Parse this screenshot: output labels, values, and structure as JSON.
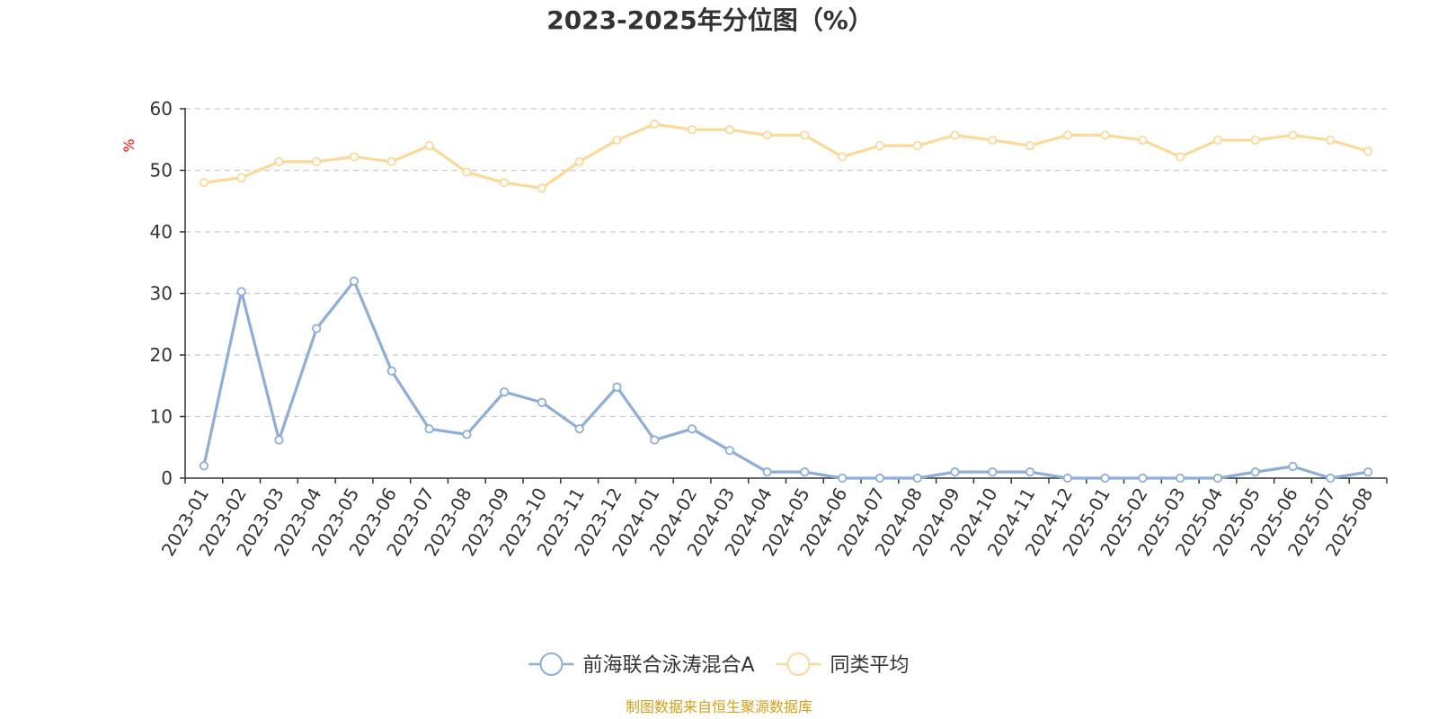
{
  "chart_data": {
    "type": "line",
    "title": "2023-2025年分位图（%）",
    "ylabel": "%",
    "xlabel": "",
    "ylim": [
      0,
      60
    ],
    "yticks": [
      0,
      10,
      20,
      30,
      40,
      50,
      60
    ],
    "grid": true,
    "legend_position": "bottom-center",
    "categories": [
      "2023-01",
      "2023-02",
      "2023-03",
      "2023-04",
      "2023-05",
      "2023-06",
      "2023-07",
      "2023-08",
      "2023-09",
      "2023-10",
      "2023-11",
      "2023-12",
      "2024-01",
      "2024-02",
      "2024-03",
      "2024-04",
      "2024-05",
      "2024-06",
      "2024-07",
      "2024-08",
      "2024-09",
      "2024-10",
      "2024-11",
      "2024-12",
      "2025-01",
      "2025-02",
      "2025-03",
      "2025-04",
      "2025-05",
      "2025-06",
      "2025-07",
      "2025-08"
    ],
    "series": [
      {
        "name": "前海联合泳涛混合A",
        "color": "#8eaed8",
        "values": [
          2,
          30.3,
          6.2,
          24.3,
          32,
          17.4,
          8,
          7.1,
          14,
          12.3,
          8,
          14.8,
          6.2,
          8,
          4.5,
          1,
          1,
          0,
          0,
          0,
          1,
          1,
          1,
          0,
          0,
          0,
          0,
          0,
          1,
          1.9,
          0,
          1
        ]
      },
      {
        "name": "同类平均",
        "color": "#fbd999",
        "values": [
          48,
          48.8,
          51.4,
          51.4,
          52.2,
          51.4,
          54,
          49.7,
          48,
          47.1,
          51.4,
          54.9,
          57.5,
          56.6,
          56.6,
          55.7,
          55.7,
          52.2,
          54,
          54,
          55.7,
          54.9,
          54,
          55.7,
          55.7,
          54.9,
          52.2,
          54.9,
          54.9,
          55.7,
          54.9,
          53.1
        ]
      }
    ]
  },
  "source": "制图数据来自恒生聚源数据库",
  "colors": {
    "axis": "#333333",
    "grid": "#cccccc",
    "ylabel": "#ff0000",
    "source": "#d4a017"
  }
}
